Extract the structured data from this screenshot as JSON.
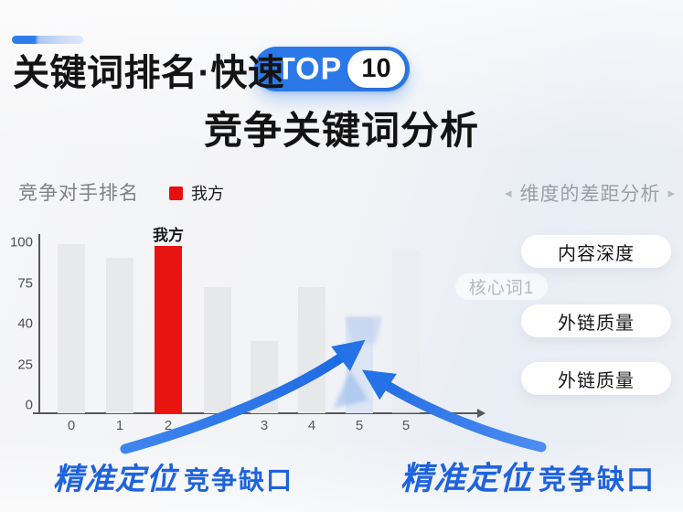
{
  "header": {
    "title": "关键词排名·快速",
    "badge": {
      "label": "TOP",
      "number": "10"
    },
    "subtitle": "竞争关键词分析"
  },
  "chart": {
    "title": "竞争对手排名",
    "legend": {
      "label": "我方"
    },
    "highlight_label": "我方",
    "chart_data": {
      "type": "bar",
      "title": "竞争对手排名",
      "categories": [
        "0",
        "1",
        "2",
        "",
        "3",
        "4",
        "5",
        "5"
      ],
      "values": [
        99,
        91,
        98,
        74,
        42,
        74,
        56,
        95
      ],
      "bar_colors": [
        "#e8e9eb",
        "#e8e9eb",
        "#e8140f",
        "#e7e8ea",
        "#e7e8ea",
        "#e7e8ea",
        "#dbe5f4",
        "rgba(233,234,237,0.5)"
      ],
      "highlight": {
        "index": 2,
        "label": "我方",
        "color": "#e8140f"
      },
      "y_ticks": [
        "100",
        "75",
        "40",
        "25",
        "0"
      ],
      "ylim": [
        0,
        100
      ],
      "xlabel": "",
      "ylabel": "",
      "legend": [
        "我方"
      ],
      "legend_position": "top",
      "grid": false
    }
  },
  "right_panel": {
    "nav_left": "◂",
    "header": "维度的差距分析",
    "nav_right": "▸",
    "floating_tag": "核心词1",
    "pills": [
      "内容深度",
      "外链质量",
      "外链质量"
    ]
  },
  "annotations": {
    "left": {
      "emphasis": "精准定位",
      "text": "竞争缺口"
    },
    "right": {
      "emphasis": "精准定位",
      "text": "竞争缺口"
    }
  },
  "colors": {
    "accent_blue": "#2b79e8",
    "arrow_blue": "#2e78e8",
    "our_red": "#e8140f",
    "annotation_blue": "#1e63dc",
    "bar_gray": "#e7e8ea",
    "bar_light_blue": "#dbe5f4"
  }
}
